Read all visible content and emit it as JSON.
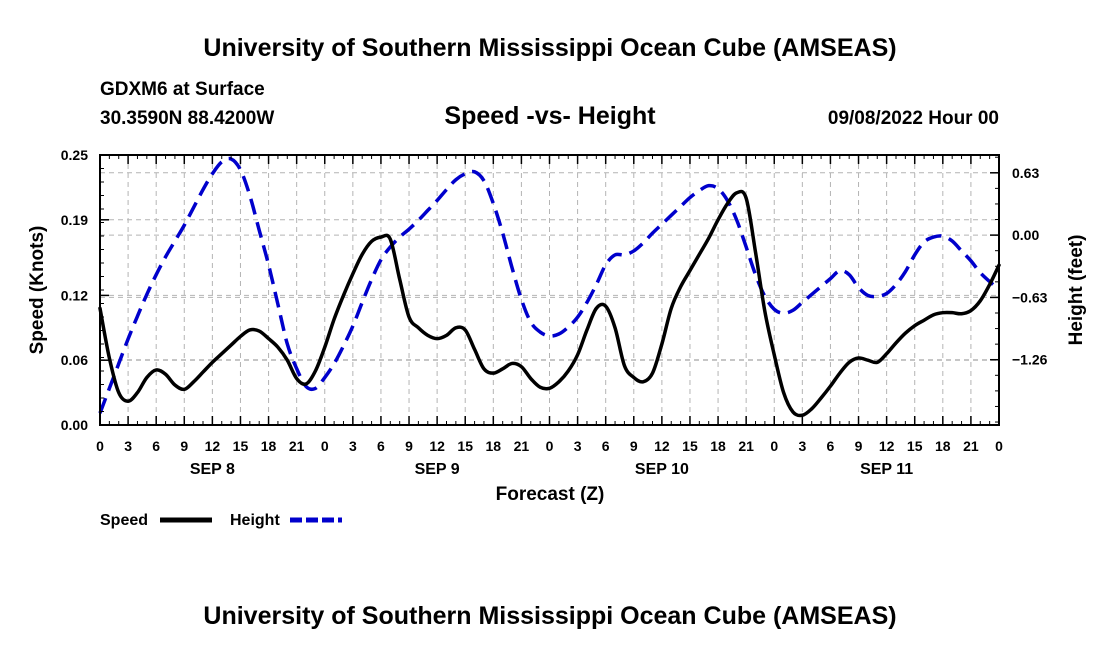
{
  "header": {
    "title": "University of Southern Mississippi Ocean Cube (AMSEAS)",
    "model": "GDXM6 at Surface",
    "location": "30.3590N  88.4200W",
    "plot_title": "Speed -vs- Height",
    "datetime": "09/08/2022 Hour 00"
  },
  "footer": {
    "title": "University of Southern Mississippi Ocean Cube (AMSEAS)"
  },
  "chart_data": {
    "type": "line",
    "title": "Speed -vs- Height",
    "xlabel": "Forecast (Z)",
    "ylabel": "Speed (Knots)",
    "y2label": "Height (feet)",
    "xlim": [
      0,
      96
    ],
    "ylim": [
      0,
      0.25
    ],
    "y2lim": [
      -1.92,
      0.81
    ],
    "x_tick_values": [
      0,
      3,
      6,
      9,
      12,
      15,
      18,
      21,
      24,
      27,
      30,
      33,
      36,
      39,
      42,
      45,
      48,
      51,
      54,
      57,
      60,
      63,
      66,
      69,
      72,
      75,
      78,
      81,
      84,
      87,
      90,
      93,
      96
    ],
    "x_tick_labels": [
      "0",
      "3",
      "6",
      "9",
      "12",
      "15",
      "18",
      "21",
      "0",
      "3",
      "6",
      "9",
      "12",
      "15",
      "18",
      "21",
      "0",
      "3",
      "6",
      "9",
      "12",
      "15",
      "18",
      "21",
      "0",
      "3",
      "6",
      "9",
      "12",
      "15",
      "18",
      "21",
      "0"
    ],
    "day_labels": [
      {
        "x": 12,
        "label": "SEP 8"
      },
      {
        "x": 36,
        "label": "SEP 9"
      },
      {
        "x": 60,
        "label": "SEP 10"
      },
      {
        "x": 84,
        "label": "SEP 11"
      }
    ],
    "y_ticks": [
      {
        "value": 0.0,
        "label": "0.00"
      },
      {
        "value": 0.06,
        "label": "0.06"
      },
      {
        "value": 0.12,
        "label": "0.12"
      },
      {
        "value": 0.19,
        "label": "0.19"
      },
      {
        "value": 0.25,
        "label": "0.25"
      }
    ],
    "y2_ticks": [
      {
        "value": 0.63,
        "label": "0.63"
      },
      {
        "value": 0.0,
        "label": "0.00"
      },
      {
        "value": -0.63,
        "label": "−0.63"
      },
      {
        "value": -1.26,
        "label": "−1.26"
      }
    ],
    "grid": true,
    "series": [
      {
        "name": "Speed",
        "axis": "left",
        "color": "#000000",
        "dash": "solid",
        "x": [
          0,
          1,
          2,
          3,
          4,
          5,
          6,
          7,
          8,
          9,
          10,
          11,
          12,
          13,
          14,
          15,
          16,
          17,
          18,
          19,
          20,
          21,
          22,
          23,
          24,
          25,
          26,
          27,
          28,
          29,
          30,
          31,
          32,
          33,
          34,
          35,
          36,
          37,
          38,
          39,
          40,
          41,
          42,
          43,
          44,
          45,
          46,
          47,
          48,
          49,
          50,
          51,
          52,
          53,
          54,
          55,
          56,
          57,
          58,
          59,
          60,
          61,
          62,
          63,
          64,
          65,
          66,
          67,
          68,
          69,
          70,
          71,
          72,
          73,
          74,
          75,
          76,
          77,
          78,
          79,
          80,
          81,
          82,
          83,
          84,
          85,
          86,
          87,
          88,
          89,
          90,
          91,
          92,
          93,
          94,
          95,
          96
        ],
        "values": [
          0.108,
          0.062,
          0.03,
          0.022,
          0.03,
          0.044,
          0.051,
          0.047,
          0.037,
          0.033,
          0.04,
          0.049,
          0.058,
          0.066,
          0.074,
          0.082,
          0.088,
          0.087,
          0.08,
          0.072,
          0.06,
          0.043,
          0.038,
          0.05,
          0.072,
          0.098,
          0.12,
          0.14,
          0.158,
          0.17,
          0.174,
          0.172,
          0.135,
          0.1,
          0.09,
          0.083,
          0.08,
          0.083,
          0.09,
          0.088,
          0.07,
          0.052,
          0.048,
          0.052,
          0.057,
          0.054,
          0.043,
          0.035,
          0.034,
          0.04,
          0.05,
          0.065,
          0.088,
          0.108,
          0.11,
          0.09,
          0.055,
          0.044,
          0.04,
          0.048,
          0.075,
          0.108,
          0.128,
          0.143,
          0.158,
          0.173,
          0.19,
          0.205,
          0.215,
          0.21,
          0.16,
          0.105,
          0.065,
          0.03,
          0.012,
          0.009,
          0.015,
          0.025,
          0.036,
          0.048,
          0.058,
          0.062,
          0.06,
          0.058,
          0.066,
          0.076,
          0.085,
          0.092,
          0.097,
          0.102,
          0.104,
          0.104,
          0.103,
          0.106,
          0.115,
          0.13,
          0.148
        ]
      },
      {
        "name": "Height",
        "axis": "right",
        "color": "#0000cc",
        "dash": "dashed",
        "x": [
          0,
          1,
          2,
          3,
          4,
          5,
          6,
          7,
          8,
          9,
          10,
          11,
          12,
          13,
          14,
          15,
          16,
          17,
          18,
          19,
          20,
          21,
          22,
          23,
          24,
          25,
          26,
          27,
          28,
          29,
          30,
          31,
          32,
          33,
          34,
          35,
          36,
          37,
          38,
          39,
          40,
          41,
          42,
          43,
          44,
          45,
          46,
          47,
          48,
          49,
          50,
          51,
          52,
          53,
          54,
          55,
          56,
          57,
          58,
          59,
          60,
          61,
          62,
          63,
          64,
          65,
          66,
          67,
          68,
          69,
          70,
          71,
          72,
          73,
          74,
          75,
          76,
          77,
          78,
          79,
          80,
          81,
          82,
          83,
          84,
          85,
          86,
          87,
          88,
          89,
          90,
          91,
          92,
          93,
          94,
          95,
          96
        ],
        "values": [
          -1.8,
          -1.55,
          -1.3,
          -1.05,
          -0.82,
          -0.6,
          -0.4,
          -0.22,
          -0.06,
          0.1,
          0.28,
          0.46,
          0.62,
          0.74,
          0.77,
          0.66,
          0.4,
          0.05,
          -0.3,
          -0.7,
          -1.1,
          -1.35,
          -1.53,
          -1.55,
          -1.44,
          -1.3,
          -1.12,
          -0.92,
          -0.68,
          -0.45,
          -0.25,
          -0.12,
          -0.02,
          0.06,
          0.15,
          0.25,
          0.35,
          0.46,
          0.56,
          0.62,
          0.64,
          0.55,
          0.32,
          0.02,
          -0.33,
          -0.65,
          -0.88,
          -0.98,
          -1.02,
          -1.0,
          -0.93,
          -0.83,
          -0.68,
          -0.5,
          -0.3,
          -0.2,
          -0.2,
          -0.16,
          -0.08,
          0.02,
          0.11,
          0.2,
          0.29,
          0.38,
          0.45,
          0.5,
          0.47,
          0.35,
          0.15,
          -0.12,
          -0.4,
          -0.62,
          -0.75,
          -0.79,
          -0.76,
          -0.68,
          -0.6,
          -0.52,
          -0.44,
          -0.36,
          -0.4,
          -0.53,
          -0.61,
          -0.62,
          -0.59,
          -0.5,
          -0.37,
          -0.2,
          -0.07,
          -0.02,
          -0.01,
          -0.06,
          -0.16,
          -0.26,
          -0.38,
          -0.47,
          -0.55
        ]
      }
    ]
  },
  "legend": {
    "items": [
      {
        "label": "Speed",
        "color": "#000000",
        "dash": "solid"
      },
      {
        "label": "Height",
        "color": "#0000cc",
        "dash": "dashed"
      }
    ]
  }
}
